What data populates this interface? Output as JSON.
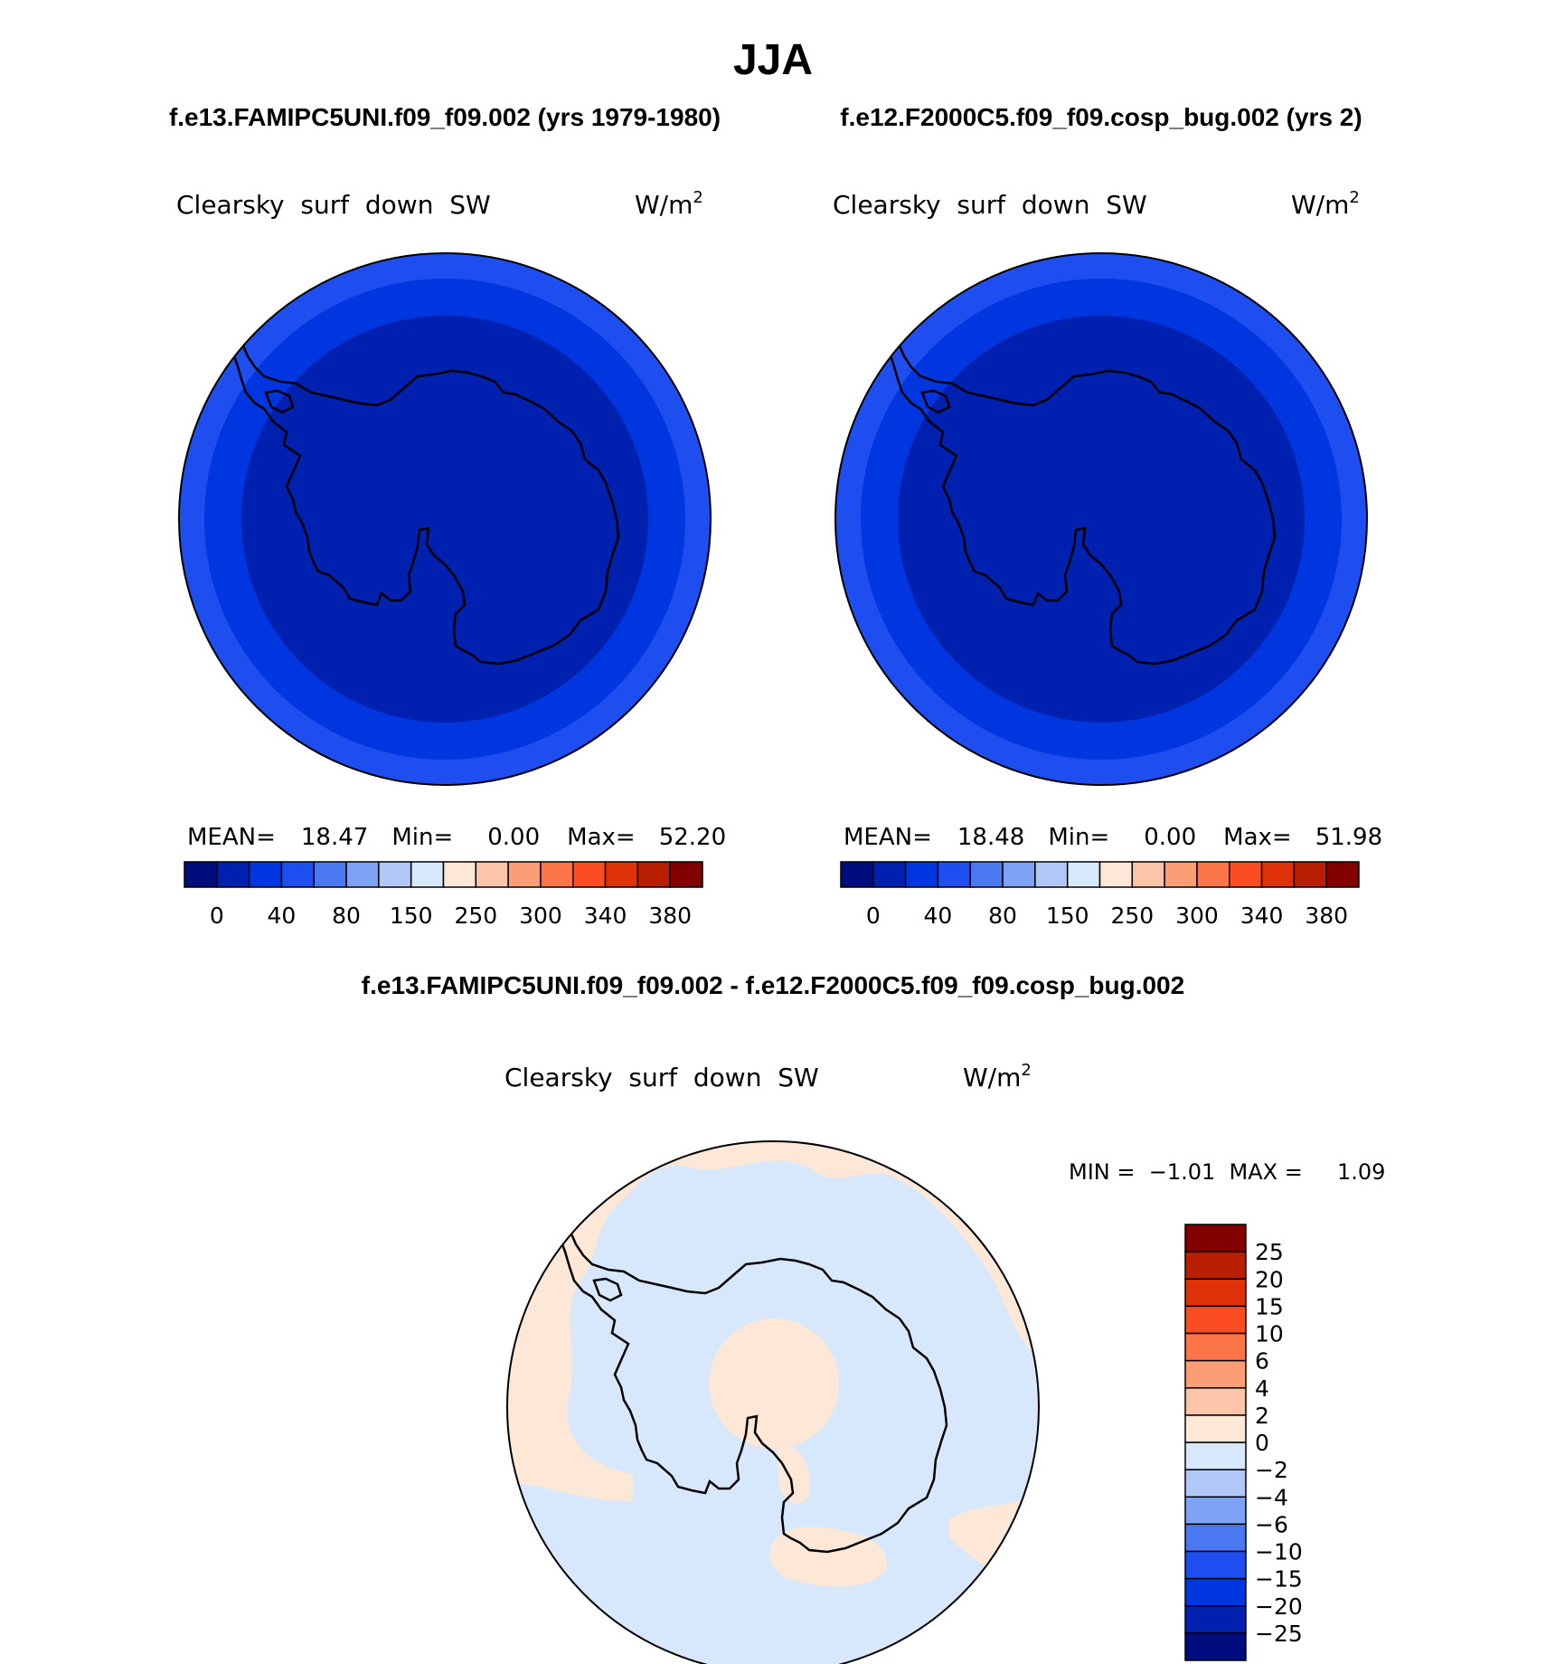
{
  "title": "JJA",
  "panel_a": {
    "header": "f.e13.FAMIPC5UNI.f09_f09.002 (yrs 1979-1980)",
    "variable": "Clearsky  surf  down  SW",
    "units": "W/m",
    "units_sup": "2",
    "stats": {
      "mean_label": "MEAN=",
      "mean": "18.47",
      "min_label": "Min=",
      "min": "0.00",
      "max_label": "Max=",
      "max": "52.20"
    }
  },
  "panel_b": {
    "header": "f.e12.F2000C5.f09_f09.cosp_bug.002 (yrs 2)",
    "variable": "Clearsky  surf  down  SW",
    "units": "W/m",
    "units_sup": "2",
    "stats": {
      "mean_label": "MEAN=",
      "mean": "18.48",
      "min_label": "Min=",
      "min": "0.00",
      "max_label": "Max=",
      "max": "51.98"
    }
  },
  "diff_panel": {
    "header": "f.e13.FAMIPC5UNI.f09_f09.002 - f.e12.F2000C5.f09_f09.cosp_bug.002",
    "variable": "Clearsky  surf  down  SW",
    "units": "W/m",
    "units_sup": "2",
    "stats_text": "MIN =  −1.01  MAX =     1.09"
  },
  "colorbar_abs": {
    "colors": [
      "#000d7c",
      "#0020b0",
      "#0036e0",
      "#1e4ef0",
      "#4a78f0",
      "#7ea2f4",
      "#b0c8f8",
      "#d8e8fc",
      "#fde7d6",
      "#fcc4a8",
      "#fb9e76",
      "#fb7548",
      "#fb4c22",
      "#e03208",
      "#b81e02",
      "#820000"
    ],
    "tick_labels": [
      "0",
      "40",
      "80",
      "150",
      "250",
      "300",
      "340",
      "380"
    ]
  },
  "colorbar_diff": {
    "colors": [
      "#820000",
      "#b81e02",
      "#e03208",
      "#fb4c22",
      "#fb7548",
      "#fb9e76",
      "#fcc4a8",
      "#fde7d6",
      "#d8e8fc",
      "#b0c8f8",
      "#7ea2f4",
      "#4a78f0",
      "#1e4ef0",
      "#0036e0",
      "#0020b0",
      "#000d7c"
    ],
    "tick_labels": [
      "25",
      "20",
      "15",
      "10",
      "6",
      "4",
      "2",
      "0",
      "−2",
      "−4",
      "−6",
      "−10",
      "−15",
      "−20",
      "−25"
    ]
  },
  "map_colors": {
    "outer_band": "#1e4ef0",
    "mid_band": "#0036e0",
    "inner": "#0020b0",
    "diff_negative": "#d8e8fc",
    "diff_positive": "#fde7d6"
  }
}
